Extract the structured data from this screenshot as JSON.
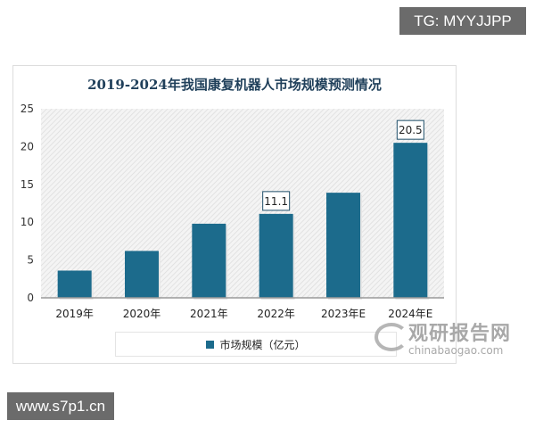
{
  "overlays": {
    "top_tag": "TG: MYYJJPP",
    "bottom_tag": "www.s7p1.cn"
  },
  "watermark": {
    "cn": "观研报告网",
    "en": "chinabaogao.com"
  },
  "chart_data": {
    "type": "bar",
    "title": "2019-2024年我国康复机器人市场规模预测情况",
    "categories": [
      "2019年",
      "2020年",
      "2021年",
      "2022年",
      "2023年E",
      "2024年E"
    ],
    "series": [
      {
        "name": "市场规模（亿元）",
        "values": [
          3.6,
          6.2,
          9.8,
          11.1,
          13.9,
          20.5
        ],
        "color": "#1c6b8c"
      }
    ],
    "data_labels": [
      {
        "index": 3,
        "text": "11.1"
      },
      {
        "index": 5,
        "text": "20.5"
      }
    ],
    "ylim": [
      0,
      25
    ],
    "yticks": [
      "0",
      "5",
      "10",
      "15",
      "20",
      "25"
    ],
    "grid": false,
    "background": "diagonal hatch",
    "legend_position": "bottom"
  }
}
